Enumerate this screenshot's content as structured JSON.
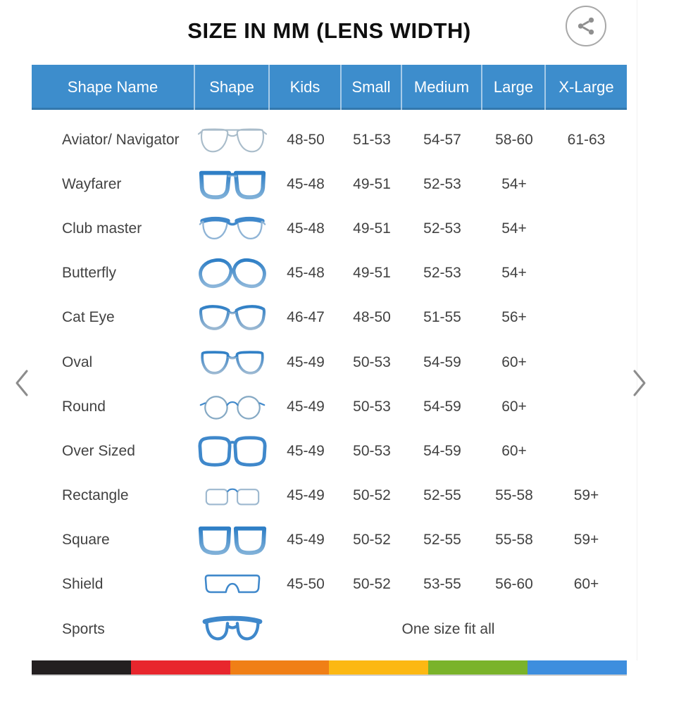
{
  "title": "SIZE IN MM (LENS WIDTH)",
  "icons": {
    "share": "share-icon",
    "prev": "chevron-left-icon",
    "next": "chevron-right-icon"
  },
  "colors": {
    "header_bg": "#3d8dcc",
    "header_text": "#ffffff",
    "accent_blue": "#3f88cb",
    "body_text": "#424242"
  },
  "table": {
    "columns": [
      "Shape Name",
      "Shape",
      "Kids",
      "Small",
      "Medium",
      "Large",
      "X-Large"
    ],
    "rows": [
      {
        "name": "Aviator/ Navigator",
        "icon": "aviator-glasses-icon",
        "sizes": [
          "48-50",
          "51-53",
          "54-57",
          "58-60",
          "61-63"
        ]
      },
      {
        "name": "Wayfarer",
        "icon": "wayfarer-glasses-icon",
        "sizes": [
          "45-48",
          "49-51",
          "52-53",
          "54+",
          ""
        ]
      },
      {
        "name": "Club master",
        "icon": "clubmaster-glasses-icon",
        "sizes": [
          "45-48",
          "49-51",
          "52-53",
          "54+",
          ""
        ]
      },
      {
        "name": "Butterfly",
        "icon": "butterfly-glasses-icon",
        "sizes": [
          "45-48",
          "49-51",
          "52-53",
          "54+",
          ""
        ]
      },
      {
        "name": "Cat Eye",
        "icon": "cateye-glasses-icon",
        "sizes": [
          "46-47",
          "48-50",
          "51-55",
          "56+",
          ""
        ]
      },
      {
        "name": "Oval",
        "icon": "oval-glasses-icon",
        "sizes": [
          "45-49",
          "50-53",
          "54-59",
          "60+",
          ""
        ]
      },
      {
        "name": "Round",
        "icon": "round-glasses-icon",
        "sizes": [
          "45-49",
          "50-53",
          "54-59",
          "60+",
          ""
        ]
      },
      {
        "name": "Over Sized",
        "icon": "oversized-glasses-icon",
        "sizes": [
          "45-49",
          "50-53",
          "54-59",
          "60+",
          ""
        ]
      },
      {
        "name": "Rectangle",
        "icon": "rectangle-glasses-icon",
        "sizes": [
          "45-49",
          "50-52",
          "52-55",
          "55-58",
          "59+"
        ]
      },
      {
        "name": "Square",
        "icon": "square-glasses-icon",
        "sizes": [
          "45-49",
          "50-52",
          "52-55",
          "55-58",
          "59+"
        ]
      },
      {
        "name": "Shield",
        "icon": "shield-glasses-icon",
        "sizes": [
          "45-50",
          "50-52",
          "53-55",
          "56-60",
          "60+"
        ]
      },
      {
        "name": "Sports",
        "icon": "sports-glasses-icon",
        "one_size": "One size fit all"
      }
    ]
  },
  "footer_stripe": {
    "colors": [
      "#231f20",
      "#e8262d",
      "#f07f16",
      "#fcb813",
      "#7ab32a",
      "#3e8ede"
    ]
  }
}
